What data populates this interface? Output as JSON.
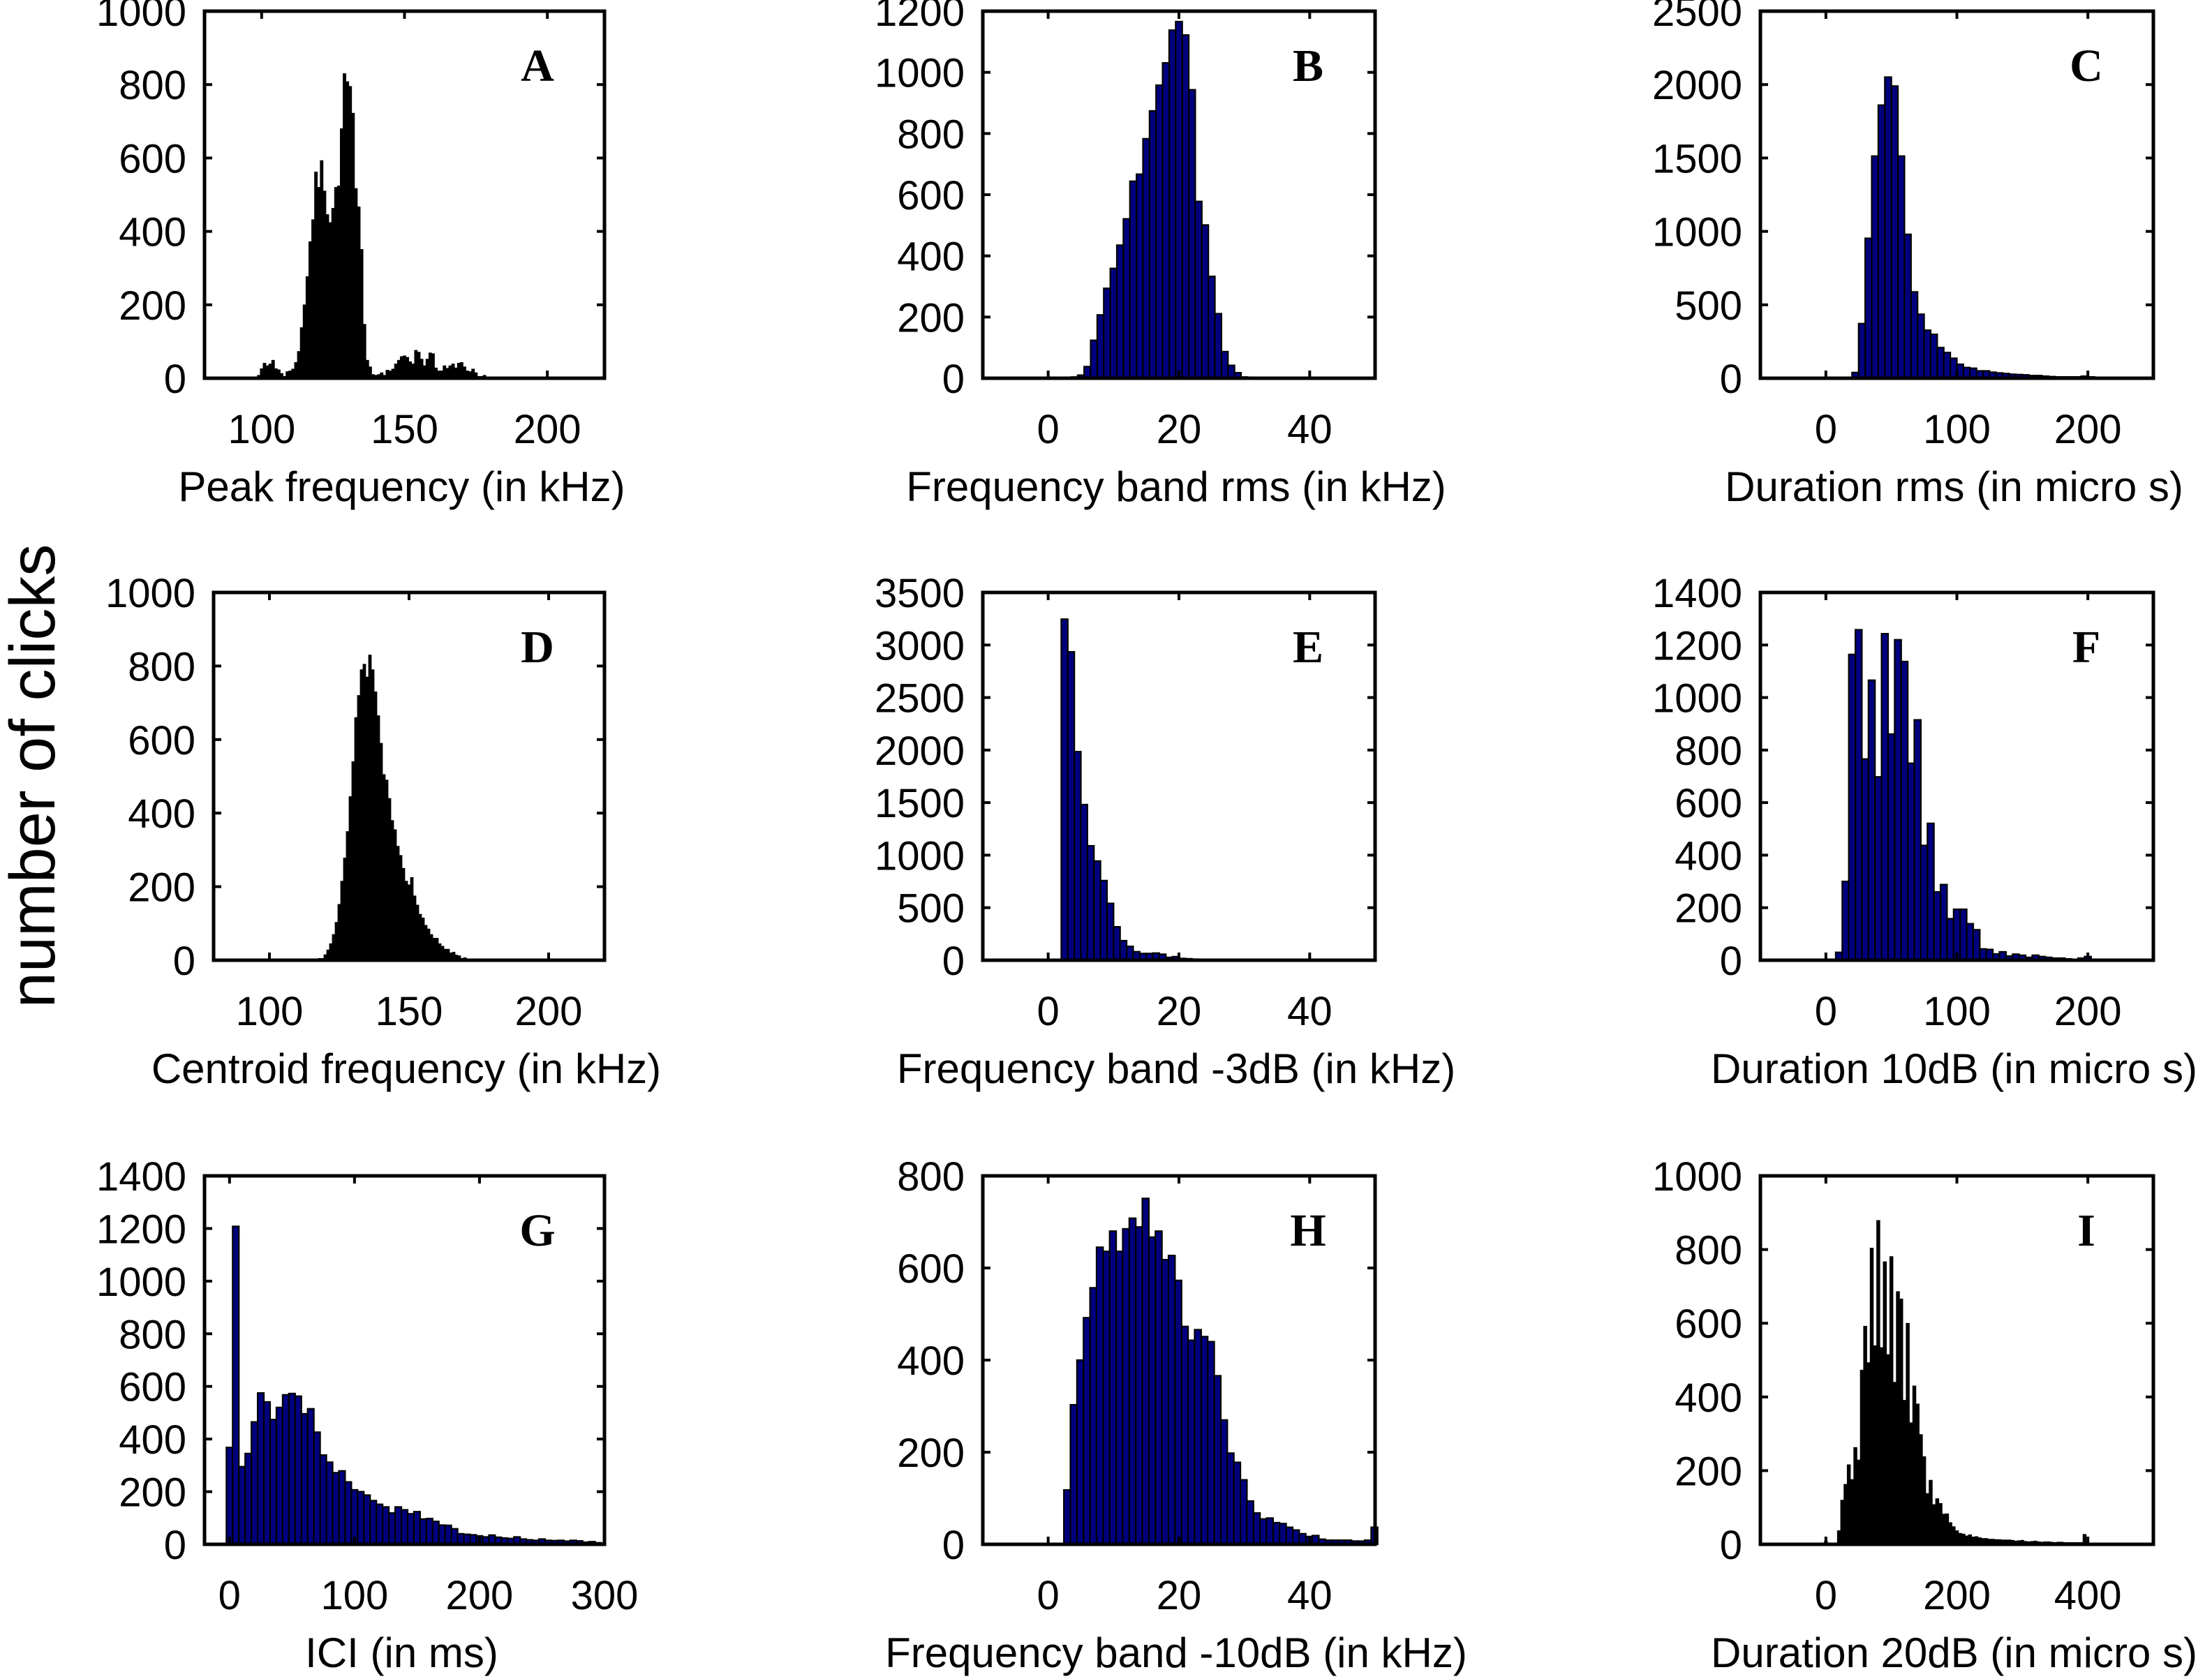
{
  "figure": {
    "shared_ylabel": "number of clicks"
  },
  "chart_data": [
    {
      "type": "bar",
      "panel": "A",
      "title": "",
      "xlabel": "Peak frequency (in kHz)",
      "ylabel": "number of clicks",
      "xlim": [
        80,
        220
      ],
      "ylim": [
        0,
        1000
      ],
      "xticks": [
        100,
        150,
        200
      ],
      "yticks": [
        0,
        200,
        400,
        600,
        800,
        1000
      ],
      "grid": false,
      "bar_color": "#000000",
      "edge_color": "#000000",
      "bin_width": 1,
      "x": [
        99,
        100,
        101,
        102,
        103,
        104,
        105,
        106,
        107,
        108,
        109,
        110,
        111,
        112,
        113,
        114,
        115,
        116,
        117,
        118,
        119,
        120,
        121,
        122,
        123,
        124,
        125,
        126,
        127,
        128,
        129,
        130,
        131,
        132,
        133,
        134,
        135,
        136,
        137,
        138,
        139,
        140,
        141,
        142,
        143,
        144,
        145,
        146,
        147,
        148,
        149,
        150,
        151,
        152,
        153,
        154,
        155,
        156,
        157,
        158,
        159,
        160,
        161,
        162,
        163,
        164,
        165,
        166,
        167,
        168,
        169,
        170,
        171,
        172,
        173,
        174,
        175,
        176,
        177,
        178
      ],
      "values": [
        8,
        26,
        41,
        34,
        39,
        49,
        26,
        23,
        13,
        5,
        18,
        20,
        25,
        43,
        73,
        138,
        200,
        277,
        372,
        432,
        562,
        520,
        593,
        510,
        446,
        424,
        463,
        520,
        524,
        680,
        830,
        808,
        795,
        722,
        517,
        467,
        351,
        147,
        49,
        31,
        10,
        8,
        10,
        15,
        8,
        22,
        20,
        25,
        39,
        49,
        59,
        61,
        57,
        45,
        39,
        76,
        71,
        52,
        34,
        52,
        69,
        67,
        28,
        20,
        20,
        34,
        27,
        34,
        39,
        28,
        41,
        43,
        31,
        20,
        18,
        25,
        15,
        5,
        5,
        8
      ]
    },
    {
      "type": "bar",
      "panel": "B",
      "title": "",
      "xlabel": "Frequency band rms (in kHz)",
      "ylabel": "number of clicks",
      "xlim": [
        -10,
        50
      ],
      "ylim": [
        0,
        1200
      ],
      "xticks": [
        0,
        20,
        40
      ],
      "yticks": [
        0,
        200,
        400,
        600,
        800,
        1000,
        1200
      ],
      "grid": false,
      "bar_color": "#00007f",
      "edge_color": "#000000",
      "bin_width": 1,
      "x": [
        4,
        5,
        6,
        7,
        8,
        9,
        10,
        11,
        12,
        13,
        14,
        15,
        16,
        17,
        18,
        19,
        20,
        21,
        22,
        23,
        24,
        25,
        26,
        27,
        28,
        29,
        30,
        31
      ],
      "values": [
        4,
        10,
        38,
        124,
        207,
        294,
        359,
        435,
        521,
        644,
        667,
        783,
        874,
        958,
        1031,
        1138,
        1166,
        1122,
        943,
        578,
        501,
        333,
        211,
        87,
        42,
        18,
        4,
        2
      ]
    },
    {
      "type": "bar",
      "panel": "C",
      "title": "",
      "xlabel": "Duration rms (in micro s)",
      "ylabel": "number of clicks",
      "xlim": [
        -50,
        250
      ],
      "ylim": [
        0,
        2500
      ],
      "xticks": [
        0,
        100,
        200
      ],
      "yticks": [
        0,
        500,
        1000,
        1500,
        2000,
        2500
      ],
      "grid": false,
      "bar_color": "#00007f",
      "edge_color": "#000000",
      "bin_width": 5,
      "x": [
        7.5,
        12.5,
        17.5,
        22.5,
        27.5,
        32.5,
        37.5,
        42.5,
        47.5,
        52.5,
        57.5,
        62.5,
        67.5,
        72.5,
        77.5,
        82.5,
        87.5,
        92.5,
        97.5,
        102.5,
        107.5,
        112.5,
        117.5,
        122.5,
        127.5,
        132.5,
        137.5,
        142.5,
        147.5,
        152.5,
        157.5,
        162.5,
        167.5,
        172.5,
        177.5,
        182.5,
        187.5,
        192.5,
        197.5,
        202.5
      ],
      "values": [
        2,
        3,
        6,
        39,
        372,
        953,
        1513,
        1860,
        2051,
        1990,
        1513,
        980,
        588,
        436,
        327,
        299,
        209,
        175,
        136,
        95,
        73,
        68,
        50,
        50,
        41,
        36,
        32,
        27,
        25,
        23,
        18,
        18,
        14,
        11,
        9,
        9,
        9,
        9,
        14,
        9
      ]
    },
    {
      "type": "bar",
      "panel": "D",
      "title": "",
      "xlabel": "Centroid frequency (in kHz)",
      "ylabel": "number of clicks",
      "xlim": [
        80,
        220
      ],
      "ylim": [
        0,
        1000
      ],
      "xticks": [
        100,
        150,
        200
      ],
      "yticks": [
        0,
        200,
        400,
        600,
        800,
        1000
      ],
      "grid": false,
      "bar_color": "#000000",
      "edge_color": "#000000",
      "bin_width": 1,
      "x": [
        117,
        118,
        119,
        120,
        121,
        122,
        123,
        124,
        125,
        126,
        127,
        128,
        129,
        130,
        131,
        132,
        133,
        134,
        135,
        136,
        137,
        138,
        139,
        140,
        141,
        142,
        143,
        144,
        145,
        146,
        147,
        148,
        149,
        150,
        151,
        152,
        153,
        154,
        155,
        156,
        157,
        158,
        159,
        160,
        161,
        162,
        163,
        164,
        165,
        166,
        167,
        168,
        169,
        170,
        171,
        172
      ],
      "values": [
        4,
        5,
        5,
        15,
        28,
        45,
        70,
        103,
        152,
        215,
        278,
        350,
        445,
        540,
        660,
        720,
        790,
        805,
        770,
        830,
        790,
        730,
        665,
        590,
        505,
        490,
        440,
        380,
        355,
        310,
        285,
        250,
        215,
        205,
        225,
        175,
        150,
        125,
        115,
        95,
        85,
        70,
        60,
        60,
        45,
        38,
        30,
        30,
        20,
        22,
        14,
        12,
        5,
        7,
        4,
        3
      ]
    },
    {
      "type": "bar",
      "panel": "E",
      "title": "",
      "xlabel": "Frequency band -3dB (in kHz)",
      "ylabel": "number of clicks",
      "xlim": [
        -10,
        50
      ],
      "ylim": [
        0,
        3500
      ],
      "xticks": [
        0,
        20,
        40
      ],
      "yticks": [
        0,
        500,
        1000,
        1500,
        2000,
        2500,
        3000,
        3500
      ],
      "grid": false,
      "bar_color": "#00007f",
      "edge_color": "#000000",
      "bin_width": 1,
      "x": [
        2.5,
        3.5,
        4.5,
        5.5,
        6.5,
        7.5,
        8.5,
        9.5,
        10.5,
        11.5,
        12.5,
        13.5,
        14.5,
        15.5,
        16.5,
        17.5,
        18.5,
        19.5,
        20.5,
        21.5,
        22.5,
        23.5,
        24.5,
        25.5
      ],
      "values": [
        3246,
        2935,
        1985,
        1481,
        1089,
        944,
        758,
        541,
        318,
        186,
        132,
        81,
        64,
        64,
        68,
        57,
        27,
        34,
        17,
        14,
        10,
        7,
        7,
        3
      ]
    },
    {
      "type": "bar",
      "panel": "F",
      "title": "",
      "xlabel": "Duration 10dB (in micro s)",
      "ylabel": "number of clicks",
      "xlim": [
        -50,
        250
      ],
      "ylim": [
        0,
        1400
      ],
      "xticks": [
        0,
        100,
        200
      ],
      "yticks": [
        0,
        200,
        400,
        600,
        800,
        1000,
        1200,
        1400
      ],
      "grid": false,
      "bar_color": "#00007f",
      "edge_color": "#000000",
      "bin_width": 5,
      "x": [
        10,
        15,
        20,
        25,
        30,
        35,
        40,
        45,
        50,
        55,
        60,
        65,
        70,
        75,
        80,
        85,
        90,
        95,
        100,
        105,
        110,
        115,
        120,
        125,
        130,
        135,
        140,
        145,
        150,
        155,
        160,
        165,
        170,
        175,
        180,
        185,
        190,
        195,
        200
      ],
      "values": [
        30,
        300,
        1164,
        1258,
        766,
        1066,
        698,
        1243,
        861,
        1220,
        1137,
        750,
        915,
        437,
        521,
        260,
        288,
        158,
        194,
        194,
        139,
        116,
        43,
        41,
        24,
        32,
        16,
        23,
        19,
        11,
        19,
        14,
        11,
        8,
        8,
        5,
        3,
        8,
        14
      ]
    },
    {
      "type": "bar",
      "panel": "G",
      "title": "",
      "xlabel": "ICI (in ms)",
      "ylabel": "number of clicks",
      "xlim": [
        -20,
        300
      ],
      "ylim": [
        0,
        1400
      ],
      "xticks": [
        0,
        100,
        200,
        300
      ],
      "yticks": [
        0,
        200,
        400,
        600,
        800,
        1000,
        1200,
        1400
      ],
      "grid": false,
      "bar_color": "#00007f",
      "edge_color": "#000000",
      "bin_width": 5,
      "x": [
        0,
        5,
        10,
        15,
        20,
        25,
        30,
        35,
        40,
        45,
        50,
        55,
        60,
        65,
        70,
        75,
        80,
        85,
        90,
        95,
        100,
        105,
        110,
        115,
        120,
        125,
        130,
        135,
        140,
        145,
        150,
        155,
        160,
        165,
        170,
        175,
        180,
        185,
        190,
        195,
        200,
        205,
        210,
        215,
        220,
        225,
        230,
        235,
        240,
        245,
        250,
        255,
        260,
        265,
        270,
        275,
        280,
        285,
        290,
        295
      ],
      "values": [
        368,
        1208,
        295,
        345,
        465,
        575,
        541,
        474,
        520,
        568,
        573,
        563,
        496,
        515,
        426,
        339,
        312,
        272,
        279,
        237,
        207,
        200,
        187,
        166,
        152,
        142,
        119,
        142,
        131,
        116,
        124,
        96,
        98,
        87,
        73,
        72,
        59,
        40,
        38,
        36,
        32,
        28,
        35,
        27,
        24,
        22,
        28,
        20,
        17,
        15,
        20,
        15,
        14,
        15,
        12,
        15,
        13,
        8,
        10,
        6
      ]
    },
    {
      "type": "bar",
      "panel": "H",
      "title": "",
      "xlabel": "Frequency band -10dB (in kHz)",
      "ylabel": "number of clicks",
      "xlim": [
        -10,
        50
      ],
      "ylim": [
        0,
        800
      ],
      "xticks": [
        0,
        20,
        40
      ],
      "yticks": [
        0,
        200,
        400,
        600,
        800
      ],
      "grid": false,
      "bar_color": "#00007f",
      "edge_color": "#000000",
      "bin_width": 1,
      "x": [
        2.9,
        3.9,
        4.9,
        5.9,
        6.9,
        7.9,
        8.9,
        9.9,
        10.9,
        11.9,
        12.9,
        13.9,
        14.9,
        15.9,
        16.9,
        17.9,
        18.9,
        19.9,
        20.9,
        21.9,
        22.9,
        23.9,
        24.9,
        25.9,
        26.9,
        27.9,
        28.9,
        29.9,
        30.9,
        31.9,
        32.9,
        33.9,
        34.9,
        35.9,
        36.9,
        37.9,
        38.9,
        39.9,
        40.9,
        41.9,
        42.9,
        43.9,
        44.9,
        45.9,
        46.9,
        47.9,
        48.9,
        49.9
      ],
      "values": [
        118,
        303,
        400,
        492,
        557,
        645,
        636,
        680,
        636,
        685,
        708,
        689,
        751,
        667,
        680,
        618,
        627,
        573,
        473,
        443,
        466,
        451,
        440,
        366,
        270,
        198,
        178,
        140,
        94,
        68,
        55,
        57,
        47,
        45,
        37,
        31,
        23,
        17,
        19,
        11,
        9,
        9,
        9,
        9,
        7,
        7,
        9,
        37
      ]
    },
    {
      "type": "bar",
      "panel": "I",
      "title": "",
      "xlabel": "Duration 20dB (in micro s)",
      "ylabel": "number of clicks",
      "xlim": [
        -100,
        500
      ],
      "ylim": [
        0,
        1000
      ],
      "xticks": [
        0,
        200,
        400
      ],
      "yticks": [
        0,
        200,
        400,
        600,
        800,
        1000
      ],
      "grid": false,
      "bar_color": "#000000",
      "edge_color": "#000000",
      "bin_width": 5,
      "x": [
        0,
        15,
        20,
        25,
        30,
        35,
        40,
        45,
        50,
        55,
        60,
        65,
        70,
        75,
        80,
        85,
        90,
        95,
        100,
        105,
        110,
        115,
        120,
        125,
        130,
        135,
        140,
        145,
        150,
        155,
        160,
        165,
        170,
        175,
        180,
        185,
        190,
        195,
        200,
        205,
        210,
        215,
        220,
        225,
        230,
        235,
        240,
        245,
        250,
        255,
        260,
        265,
        270,
        275,
        280,
        285,
        290,
        295,
        300,
        305,
        310,
        315,
        320,
        325,
        330,
        335,
        340,
        345,
        350,
        355,
        360,
        365,
        370,
        375,
        380,
        385,
        390,
        395
      ],
      "values": [
        8,
        2,
        37,
        120,
        163,
        216,
        176,
        263,
        229,
        473,
        592,
        493,
        804,
        539,
        879,
        534,
        767,
        515,
        781,
        440,
        686,
        666,
        391,
        600,
        330,
        430,
        381,
        298,
        238,
        138,
        174,
        108,
        124,
        111,
        82,
        83,
        59,
        48,
        37,
        30,
        28,
        23,
        26,
        20,
        21,
        18,
        16,
        16,
        14,
        14,
        13,
        13,
        12,
        12,
        12,
        11,
        9,
        10,
        11,
        8,
        7,
        8,
        9,
        7,
        6,
        7,
        7,
        6,
        5,
        6,
        6,
        5,
        5,
        5,
        5,
        5,
        5,
        27
      ]
    }
  ]
}
